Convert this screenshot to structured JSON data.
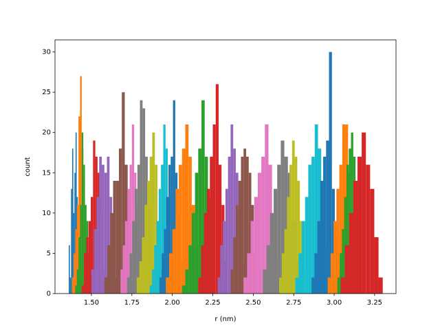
{
  "chart_data": {
    "type": "histogram",
    "xlabel": "r (nm)",
    "ylabel": "count",
    "xlim": [
      1.275,
      3.382
    ],
    "ylim": [
      0,
      31.5
    ],
    "xticks": [
      {
        "value": 1.5,
        "label": "1.50"
      },
      {
        "value": 1.75,
        "label": "1.75"
      },
      {
        "value": 2.0,
        "label": "2.00"
      },
      {
        "value": 2.25,
        "label": "2.25"
      },
      {
        "value": 2.5,
        "label": "2.50"
      },
      {
        "value": 2.75,
        "label": "2.75"
      },
      {
        "value": 3.0,
        "label": "3.00"
      },
      {
        "value": 3.25,
        "label": "3.25"
      }
    ],
    "yticks": [
      0,
      5,
      10,
      15,
      20,
      25,
      30
    ],
    "series": [
      {
        "color": "#1f77b4",
        "bins": [
          1.36,
          1.367,
          1.374,
          1.381,
          1.388,
          1.395,
          1.402,
          1.409,
          1.416,
          1.423,
          1.43
        ],
        "values": [
          6,
          2,
          13,
          18,
          10,
          15,
          20,
          12,
          5,
          3
        ]
      },
      {
        "color": "#ff7f0e",
        "bins": [
          1.38,
          1.39,
          1.4,
          1.41,
          1.42,
          1.43,
          1.44,
          1.45,
          1.46,
          1.47,
          1.48
        ],
        "values": [
          2,
          5,
          8,
          11,
          22,
          27,
          18,
          14,
          7,
          3
        ]
      },
      {
        "color": "#2ca02c",
        "bins": [
          1.4,
          1.41,
          1.42,
          1.43,
          1.44,
          1.45,
          1.46,
          1.47,
          1.48,
          1.49,
          1.5
        ],
        "values": [
          1,
          3,
          7,
          11,
          20,
          16,
          11,
          9,
          5,
          2
        ]
      },
      {
        "color": "#d62728",
        "bins": [
          1.44,
          1.454,
          1.468,
          1.482,
          1.496,
          1.51,
          1.524,
          1.538,
          1.552,
          1.566,
          1.58
        ],
        "values": [
          1,
          5,
          7,
          9,
          12,
          19,
          17,
          15,
          10,
          3
        ]
      },
      {
        "color": "#9467bd",
        "bins": [
          1.5,
          1.516,
          1.532,
          1.548,
          1.564,
          1.58,
          1.596,
          1.612,
          1.628,
          1.644,
          1.66
        ],
        "values": [
          3,
          8,
          12,
          17,
          16,
          15,
          17,
          12,
          6,
          2
        ]
      },
      {
        "color": "#8c564b",
        "bins": [
          1.58,
          1.598,
          1.616,
          1.634,
          1.652,
          1.67,
          1.688,
          1.706,
          1.724,
          1.742,
          1.76
        ],
        "values": [
          2,
          6,
          10,
          14,
          14,
          18,
          25,
          16,
          8,
          4
        ]
      },
      {
        "color": "#e377c2",
        "bins": [
          1.68,
          1.694,
          1.708,
          1.722,
          1.736,
          1.75,
          1.764,
          1.778,
          1.792,
          1.806,
          1.82
        ],
        "values": [
          3,
          6,
          9,
          13,
          16,
          21,
          15,
          11,
          7,
          2
        ]
      },
      {
        "color": "#7f7f7f",
        "bins": [
          1.72,
          1.736,
          1.752,
          1.768,
          1.784,
          1.8,
          1.816,
          1.832,
          1.848,
          1.864,
          1.88
        ],
        "values": [
          2,
          5,
          9,
          13,
          16,
          24,
          23,
          17,
          11,
          4
        ]
      },
      {
        "color": "#bcbd22",
        "bins": [
          1.78,
          1.796,
          1.812,
          1.828,
          1.844,
          1.86,
          1.876,
          1.892,
          1.908,
          1.924,
          1.94
        ],
        "values": [
          2,
          4,
          7,
          11,
          14,
          17,
          20,
          16,
          9,
          3
        ]
      },
      {
        "color": "#17becf",
        "bins": [
          1.86,
          1.874,
          1.888,
          1.902,
          1.916,
          1.93,
          1.944,
          1.958,
          1.972,
          1.986,
          2.0
        ],
        "values": [
          1,
          3,
          6,
          9,
          13,
          16,
          21,
          18,
          12,
          5
        ]
      },
      {
        "color": "#1f77b4",
        "bins": [
          1.92,
          1.934,
          1.948,
          1.962,
          1.976,
          1.99,
          2.004,
          2.018,
          2.032,
          2.046,
          2.06
        ],
        "values": [
          2,
          5,
          8,
          12,
          16,
          17,
          24,
          15,
          10,
          4
        ]
      },
      {
        "color": "#ff7f0e",
        "bins": [
          1.96,
          1.98,
          2.0,
          2.02,
          2.04,
          2.06,
          2.08,
          2.1,
          2.12,
          2.14,
          2.16
        ],
        "values": [
          2,
          5,
          8,
          13,
          16,
          18,
          21,
          17,
          11,
          6
        ]
      },
      {
        "color": "#2ca02c",
        "bins": [
          2.06,
          2.08,
          2.1,
          2.12,
          2.14,
          2.16,
          2.18,
          2.2,
          2.22,
          2.24,
          2.26
        ],
        "values": [
          1,
          3,
          6,
          10,
          15,
          18,
          24,
          17,
          12,
          5
        ]
      },
      {
        "color": "#d62728",
        "bins": [
          2.16,
          2.178,
          2.196,
          2.214,
          2.232,
          2.25,
          2.268,
          2.286,
          2.304,
          2.322,
          2.34
        ],
        "values": [
          2,
          6,
          10,
          13,
          17,
          21,
          26,
          16,
          11,
          4
        ]
      },
      {
        "color": "#9467bd",
        "bins": [
          2.28,
          2.296,
          2.312,
          2.328,
          2.344,
          2.36,
          2.376,
          2.392,
          2.408,
          2.424,
          2.44
        ],
        "values": [
          2,
          6,
          9,
          13,
          17,
          21,
          18,
          15,
          10,
          4
        ]
      },
      {
        "color": "#8c564b",
        "bins": [
          2.36,
          2.376,
          2.392,
          2.408,
          2.424,
          2.44,
          2.456,
          2.472,
          2.488,
          2.504,
          2.52
        ],
        "values": [
          3,
          7,
          11,
          14,
          17,
          18,
          17,
          15,
          11,
          5
        ]
      },
      {
        "color": "#e377c2",
        "bins": [
          2.44,
          2.462,
          2.484,
          2.506,
          2.528,
          2.55,
          2.572,
          2.594,
          2.616,
          2.638,
          2.66
        ],
        "values": [
          2,
          5,
          9,
          12,
          15,
          17,
          21,
          16,
          10,
          4
        ]
      },
      {
        "color": "#7f7f7f",
        "bins": [
          2.56,
          2.582,
          2.604,
          2.626,
          2.648,
          2.67,
          2.692,
          2.714,
          2.736,
          2.758,
          2.78
        ],
        "values": [
          3,
          6,
          10,
          13,
          16,
          19,
          17,
          15,
          9,
          4
        ]
      },
      {
        "color": "#bcbd22",
        "bins": [
          2.66,
          2.676,
          2.692,
          2.708,
          2.724,
          2.74,
          2.756,
          2.772,
          2.788,
          2.804,
          2.82
        ],
        "values": [
          2,
          5,
          8,
          12,
          16,
          19,
          17,
          14,
          9,
          3
        ]
      },
      {
        "color": "#17becf",
        "bins": [
          2.76,
          2.78,
          2.8,
          2.82,
          2.84,
          2.86,
          2.88,
          2.9,
          2.92,
          2.94,
          2.96
        ],
        "values": [
          2,
          5,
          9,
          12,
          16,
          17,
          21,
          18,
          14,
          6
        ]
      },
      {
        "color": "#1f77b4",
        "bins": [
          2.86,
          2.878,
          2.896,
          2.914,
          2.932,
          2.95,
          2.968,
          2.986,
          3.004,
          3.022,
          3.04
        ],
        "values": [
          2,
          5,
          9,
          14,
          17,
          19,
          30,
          13,
          7,
          3
        ]
      },
      {
        "color": "#ff7f0e",
        "bins": [
          2.96,
          2.978,
          2.996,
          3.014,
          3.032,
          3.05,
          3.068,
          3.086,
          3.104,
          3.122,
          3.14
        ],
        "values": [
          2,
          5,
          9,
          13,
          16,
          21,
          21,
          15,
          10,
          4
        ]
      },
      {
        "color": "#2ca02c",
        "bins": [
          3.02,
          3.034,
          3.048,
          3.062,
          3.076,
          3.09,
          3.104,
          3.118,
          3.132,
          3.146,
          3.16
        ],
        "values": [
          2,
          5,
          8,
          12,
          16,
          18,
          20,
          17,
          11,
          4
        ]
      },
      {
        "color": "#d62728",
        "bins": [
          3.04,
          3.066,
          3.092,
          3.118,
          3.144,
          3.17,
          3.196,
          3.222,
          3.248,
          3.274,
          3.3
        ],
        "values": [
          2,
          6,
          10,
          14,
          17,
          20,
          16,
          13,
          7,
          2
        ]
      }
    ]
  }
}
